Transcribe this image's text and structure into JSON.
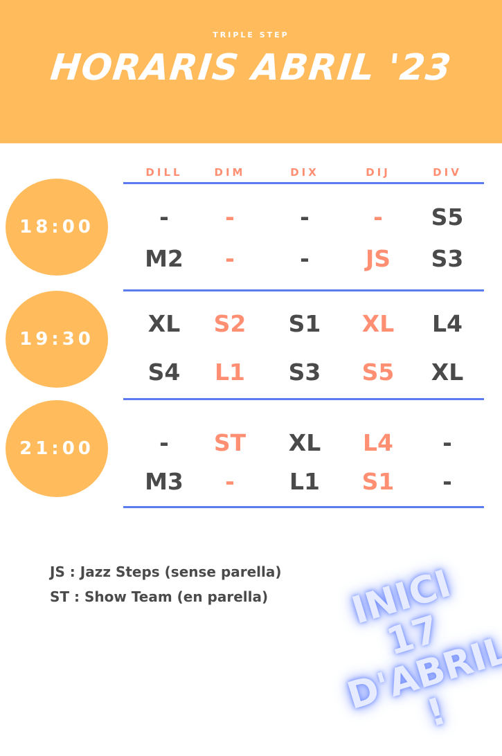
{
  "header": {
    "brand": "TRIPLE STEP",
    "title": "HORARIS ABRIL '23"
  },
  "days": [
    "DILL",
    "DIM",
    "DIX",
    "DIJ",
    "DIV"
  ],
  "colors": {
    "orange": "#FFBB5C",
    "salmon": "#FF8F73",
    "dark": "#4A4A4A",
    "blue": "#5A7CF0"
  },
  "slots": [
    {
      "time": "18:00",
      "rows": [
        [
          "-",
          "-",
          "-",
          "-",
          "S5"
        ],
        [
          "M2",
          "-",
          "-",
          "JS",
          "S3"
        ]
      ]
    },
    {
      "time": "19:30",
      "rows": [
        [
          "XL",
          "S2",
          "S1",
          "XL",
          "L4"
        ],
        [
          "S4",
          "L1",
          "S3",
          "S5",
          "XL"
        ]
      ]
    },
    {
      "time": "21:00",
      "rows": [
        [
          "-",
          "ST",
          "XL",
          "L4",
          "-"
        ],
        [
          "M3",
          "-",
          "L1",
          "S1",
          "-"
        ]
      ]
    }
  ],
  "legend": [
    "JS : Jazz Steps (sense parella)",
    "ST : Show Team  (en parella)"
  ],
  "badge": {
    "line1": "INICI 17",
    "line2": "D'ABRIL !"
  }
}
